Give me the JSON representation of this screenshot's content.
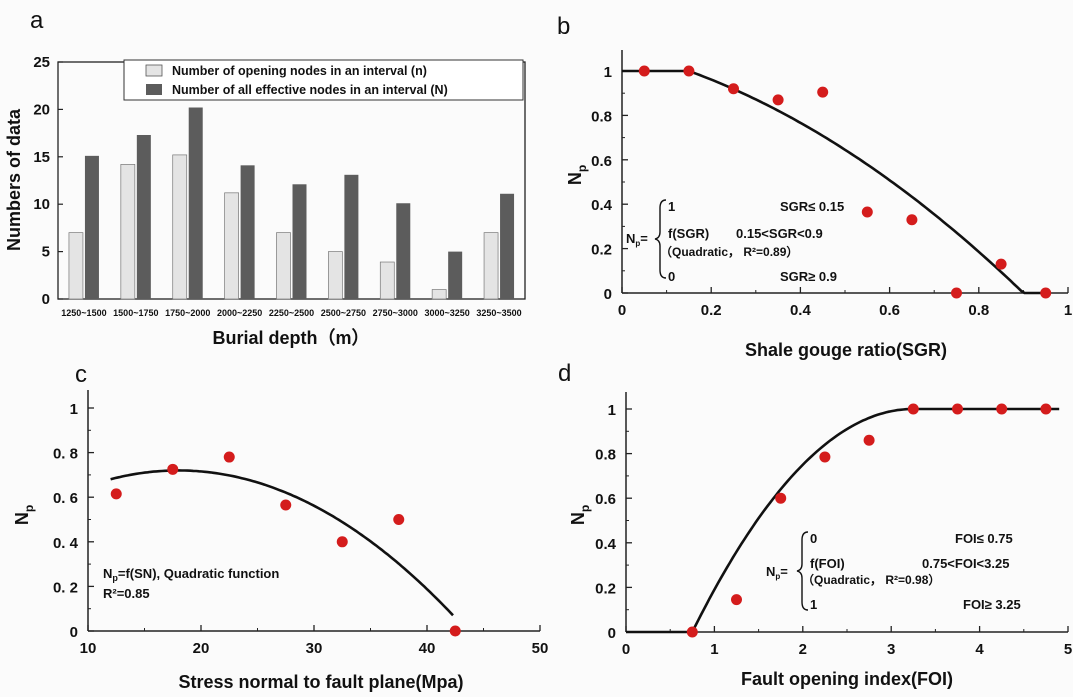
{
  "chart_data": [
    {
      "panel": "a",
      "type": "bar",
      "categories": [
        "1250~1500",
        "1500~1750",
        "1750~2000",
        "2000~2250",
        "2250~2500",
        "2500~2750",
        "2750~3000",
        "3000~3250",
        "3250~3500"
      ],
      "series": [
        {
          "name": "Number of opening nodes in an interval (n)",
          "values": [
            7,
            14.2,
            15.2,
            11.2,
            7,
            5,
            3.9,
            1,
            7
          ],
          "color": "#e4e4e4"
        },
        {
          "name": "Number of all effective nodes in an interval (N)",
          "values": [
            15.1,
            17.3,
            20.2,
            14.1,
            12.1,
            13.1,
            10.1,
            5,
            11.1
          ],
          "color": "#5c5c5c"
        }
      ],
      "xlabel": "Burial depth（m）",
      "ylabel": "Numbers of data",
      "ylim": [
        0,
        25
      ],
      "yticks": [
        "0",
        "5",
        "10",
        "15",
        "20",
        "25"
      ],
      "legend": "top-right"
    },
    {
      "panel": "b",
      "type": "scatter",
      "points_x": [
        0.05,
        0.15,
        0.25,
        0.35,
        0.45,
        0.55,
        0.65,
        0.75,
        0.85,
        0.95
      ],
      "points_y": [
        1,
        1,
        0.92,
        0.87,
        0.905,
        0.365,
        0.33,
        0,
        0.13,
        0
      ],
      "fit": "piecewise: 1 (SGR<=0.15); quadratic (0.15<SGR<0.9); 0 (SGR>=0.9)",
      "xlabel": "Shale gouge ratio(SGR)",
      "ylabel": "Np",
      "xlim": [
        0,
        1
      ],
      "ylim": [
        0,
        1
      ],
      "xticks": [
        "0",
        "0.2",
        "0.4",
        "0.6",
        "0.8",
        "1"
      ],
      "yticks": [
        "0",
        "0.2",
        "0.4",
        "0.6",
        "0.8",
        "1"
      ],
      "equation": {
        "lhs": "Np=",
        "rows": [
          {
            "expr": "1",
            "cond": "SGR≤ 0.15"
          },
          {
            "expr": "f(SGR)",
            "cond": "0.15<SGR<0.9"
          },
          {
            "expr": "（Quadratic， R²=0.89）",
            "cond": ""
          },
          {
            "expr": "0",
            "cond": "SGR≥ 0.9"
          }
        ]
      }
    },
    {
      "panel": "c",
      "type": "scatter",
      "points_x": [
        12.5,
        17.5,
        22.5,
        27.5,
        32.5,
        37.5,
        42.5
      ],
      "points_y": [
        0.615,
        0.725,
        0.78,
        0.565,
        0.4,
        0.5,
        0
      ],
      "fit": "quadratic",
      "xlabel": "Stress normal to fault plane(Mpa)",
      "ylabel": "Np",
      "xlim": [
        10,
        50
      ],
      "ylim": [
        0,
        1
      ],
      "xticks": [
        "10",
        "20",
        "30",
        "40",
        "50"
      ],
      "yticks": [
        "0",
        "0. 2",
        "0. 4",
        "0. 6",
        "0. 8",
        "1"
      ],
      "equation_lines": [
        "Np=f(SN), Quadratic function",
        "R²=0.85"
      ]
    },
    {
      "panel": "d",
      "type": "scatter",
      "points_x": [
        0.75,
        1.25,
        1.75,
        2.25,
        2.75,
        3.25,
        3.75,
        4.25,
        4.75
      ],
      "points_y": [
        0,
        0.145,
        0.6,
        0.785,
        0.86,
        1,
        1,
        1,
        1
      ],
      "fit": "piecewise: 0 (FOI<=0.75); quadratic (0.75<FOI<3.25); 1 (FOI>=3.25)",
      "xlabel": "Fault opening index(FOI)",
      "ylabel": "Np",
      "xlim": [
        0,
        5
      ],
      "ylim": [
        0,
        1
      ],
      "xticks": [
        "0",
        "1",
        "2",
        "3",
        "4",
        "5"
      ],
      "yticks": [
        "0",
        "0.2",
        "0.4",
        "0.6",
        "0.8",
        "1"
      ],
      "equation": {
        "lhs": "Np=",
        "rows": [
          {
            "expr": "0",
            "cond": "FOI≤ 0.75"
          },
          {
            "expr": "f(FOI)",
            "cond": "0.75<FOI<3.25"
          },
          {
            "expr": "（Quadratic， R²=0.98）",
            "cond": ""
          },
          {
            "expr": "1",
            "cond": "FOI≥ 3.25"
          }
        ]
      }
    }
  ],
  "colors": {
    "point": "#d41c1c",
    "curve": "#111111",
    "axis": "#222222"
  }
}
